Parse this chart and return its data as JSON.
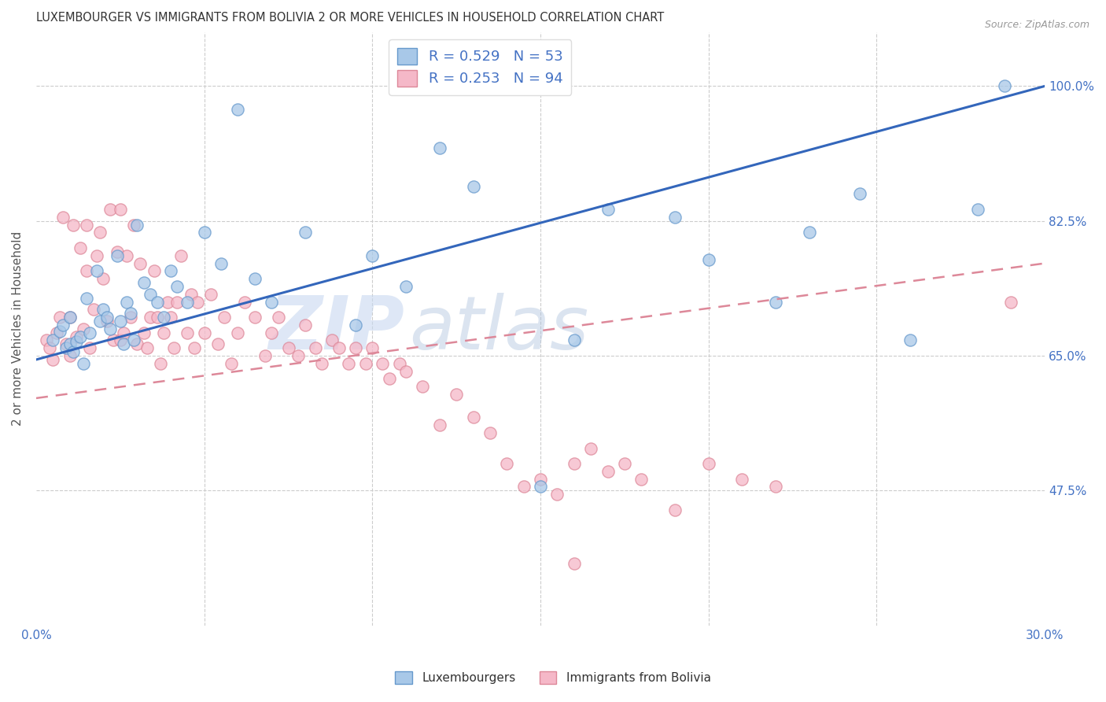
{
  "title": "LUXEMBOURGER VS IMMIGRANTS FROM BOLIVIA 2 OR MORE VEHICLES IN HOUSEHOLD CORRELATION CHART",
  "source": "Source: ZipAtlas.com",
  "ylabel": "2 or more Vehicles in Household",
  "ytick_vals": [
    0.475,
    0.65,
    0.825,
    1.0
  ],
  "ytick_labels": [
    "47.5%",
    "65.0%",
    "82.5%",
    "100.0%"
  ],
  "xtick_vals": [
    0.0,
    0.05,
    0.1,
    0.15,
    0.2,
    0.25,
    0.3
  ],
  "xtick_labels": [
    "0.0%",
    "",
    "",
    "",
    "",
    "",
    "30.0%"
  ],
  "legend_blue_label": "R = 0.529   N = 53",
  "legend_pink_label": "R = 0.253   N = 94",
  "legend_label_blue": "Luxembourgers",
  "legend_label_pink": "Immigrants from Bolivia",
  "blue_color": "#a8c8e8",
  "pink_color": "#f5b8c8",
  "blue_edge": "#6699cc",
  "pink_edge": "#dd8899",
  "line_blue_color": "#3366bb",
  "line_pink_color": "#dd8899",
  "tick_color": "#4472c4",
  "watermark_zip": "ZIP",
  "watermark_atlas": "atlas",
  "xlim": [
    0.0,
    0.3
  ],
  "ylim": [
    0.3,
    1.07
  ],
  "blue_line_x": [
    0.0,
    0.3
  ],
  "blue_line_y": [
    0.645,
    1.0
  ],
  "pink_line_x": [
    0.0,
    0.3
  ],
  "pink_line_y": [
    0.595,
    0.77
  ],
  "blue_x": [
    0.005,
    0.007,
    0.008,
    0.009,
    0.01,
    0.01,
    0.011,
    0.012,
    0.013,
    0.014,
    0.015,
    0.016,
    0.018,
    0.019,
    0.02,
    0.021,
    0.022,
    0.024,
    0.025,
    0.026,
    0.027,
    0.028,
    0.029,
    0.03,
    0.032,
    0.034,
    0.036,
    0.038,
    0.04,
    0.042,
    0.045,
    0.05,
    0.055,
    0.06,
    0.065,
    0.07,
    0.08,
    0.095,
    0.1,
    0.11,
    0.12,
    0.13,
    0.15,
    0.16,
    0.17,
    0.19,
    0.2,
    0.22,
    0.23,
    0.245,
    0.26,
    0.28,
    0.288
  ],
  "blue_y": [
    0.67,
    0.682,
    0.69,
    0.66,
    0.665,
    0.7,
    0.655,
    0.668,
    0.675,
    0.64,
    0.725,
    0.68,
    0.76,
    0.695,
    0.71,
    0.7,
    0.685,
    0.78,
    0.695,
    0.665,
    0.72,
    0.705,
    0.67,
    0.82,
    0.745,
    0.73,
    0.72,
    0.7,
    0.76,
    0.74,
    0.72,
    0.81,
    0.77,
    0.97,
    0.75,
    0.72,
    0.81,
    0.69,
    0.78,
    0.74,
    0.92,
    0.87,
    0.48,
    0.67,
    0.84,
    0.83,
    0.775,
    0.72,
    0.81,
    0.86,
    0.67,
    0.84,
    1.0
  ],
  "pink_x": [
    0.003,
    0.004,
    0.005,
    0.006,
    0.007,
    0.008,
    0.009,
    0.01,
    0.01,
    0.011,
    0.012,
    0.013,
    0.014,
    0.015,
    0.015,
    0.016,
    0.017,
    0.018,
    0.019,
    0.02,
    0.021,
    0.022,
    0.023,
    0.024,
    0.025,
    0.025,
    0.026,
    0.027,
    0.028,
    0.029,
    0.03,
    0.031,
    0.032,
    0.033,
    0.034,
    0.035,
    0.036,
    0.037,
    0.038,
    0.039,
    0.04,
    0.041,
    0.042,
    0.043,
    0.045,
    0.046,
    0.047,
    0.048,
    0.05,
    0.052,
    0.054,
    0.056,
    0.058,
    0.06,
    0.062,
    0.065,
    0.068,
    0.07,
    0.072,
    0.075,
    0.078,
    0.08,
    0.083,
    0.085,
    0.088,
    0.09,
    0.093,
    0.095,
    0.098,
    0.1,
    0.103,
    0.105,
    0.108,
    0.11,
    0.115,
    0.12,
    0.125,
    0.13,
    0.135,
    0.14,
    0.145,
    0.15,
    0.155,
    0.16,
    0.165,
    0.17,
    0.175,
    0.18,
    0.19,
    0.2,
    0.21,
    0.22,
    0.16,
    0.29
  ],
  "pink_y": [
    0.67,
    0.66,
    0.645,
    0.68,
    0.7,
    0.83,
    0.665,
    0.65,
    0.7,
    0.82,
    0.675,
    0.79,
    0.685,
    0.76,
    0.82,
    0.66,
    0.71,
    0.78,
    0.81,
    0.75,
    0.695,
    0.84,
    0.67,
    0.785,
    0.67,
    0.84,
    0.68,
    0.78,
    0.7,
    0.82,
    0.665,
    0.77,
    0.68,
    0.66,
    0.7,
    0.76,
    0.7,
    0.64,
    0.68,
    0.72,
    0.7,
    0.66,
    0.72,
    0.78,
    0.68,
    0.73,
    0.66,
    0.72,
    0.68,
    0.73,
    0.665,
    0.7,
    0.64,
    0.68,
    0.72,
    0.7,
    0.65,
    0.68,
    0.7,
    0.66,
    0.65,
    0.69,
    0.66,
    0.64,
    0.67,
    0.66,
    0.64,
    0.66,
    0.64,
    0.66,
    0.64,
    0.62,
    0.64,
    0.63,
    0.61,
    0.56,
    0.6,
    0.57,
    0.55,
    0.51,
    0.48,
    0.49,
    0.47,
    0.51,
    0.53,
    0.5,
    0.51,
    0.49,
    0.45,
    0.51,
    0.49,
    0.48,
    0.38,
    0.72
  ]
}
